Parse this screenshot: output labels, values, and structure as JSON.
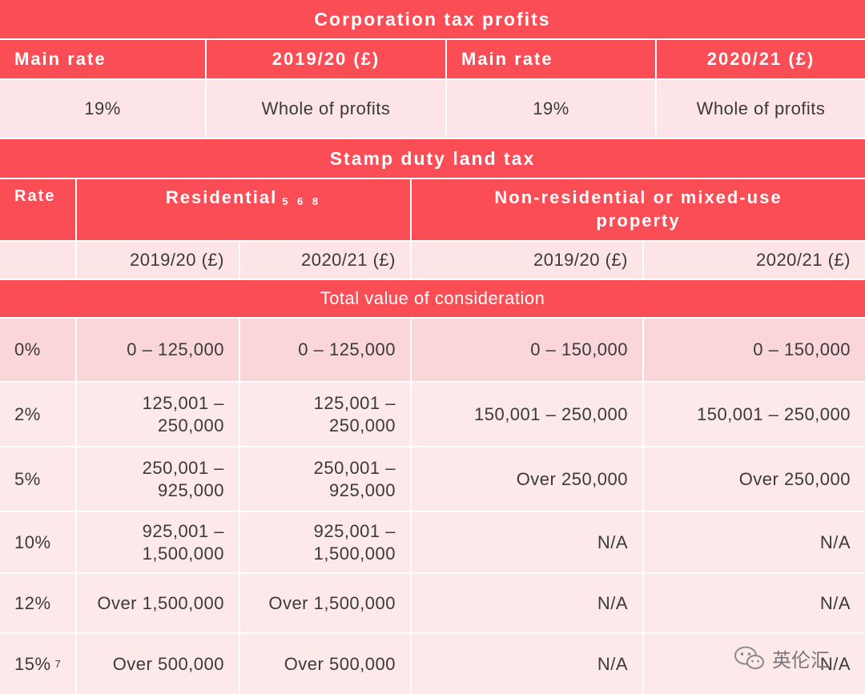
{
  "corporation": {
    "title": "Corporation tax profits",
    "headers": [
      "Main rate",
      "2019/20 (£)",
      "Main rate",
      "2020/21 (£)"
    ],
    "row": [
      "19%",
      "Whole of profits",
      "19%",
      "Whole of profits"
    ]
  },
  "stamp": {
    "title": "Stamp duty land tax",
    "rate_label": "Rate",
    "residential_label": "Residential",
    "residential_notes": "5 6 8",
    "nonres_label": "Non-residential or mixed-use property",
    "year_headers": [
      "2019/20 (£)",
      "2020/21 (£)",
      "2019/20 (£)",
      "2020/21 (£)"
    ],
    "consideration_label": "Total value of consideration",
    "rows": [
      {
        "rate": "0%",
        "note": "",
        "res1920": "0 – 125,000",
        "res2021": "0 – 125,000",
        "non1920": "0 – 150,000",
        "non2021": "0 – 150,000"
      },
      {
        "rate": "2%",
        "note": "",
        "res1920": "125,001 – 250,000",
        "res2021": "125,001 – 250,000",
        "non1920": "150,001 – 250,000",
        "non2021": "150,001 – 250,000"
      },
      {
        "rate": "5%",
        "note": "",
        "res1920": "250,001 – 925,000",
        "res2021": "250,001 – 925,000",
        "non1920": "Over 250,000",
        "non2021": "Over 250,000"
      },
      {
        "rate": "10%",
        "note": "",
        "res1920": "925,001 – 1,500,000",
        "res2021": "925,001 – 1,500,000",
        "non1920": "N/A",
        "non2021": "N/A"
      },
      {
        "rate": "12%",
        "note": "",
        "res1920": "Over 1,500,000",
        "res2021": "Over 1,500,000",
        "non1920": "N/A",
        "non2021": "N/A"
      },
      {
        "rate": "15%",
        "note": "7",
        "res1920": "Over 500,000",
        "res2021": "Over 500,000",
        "non1920": "N/A",
        "non2021": "N/A"
      }
    ]
  },
  "watermark": {
    "text": "英伦汇",
    "icon": "wechat-icon"
  }
}
